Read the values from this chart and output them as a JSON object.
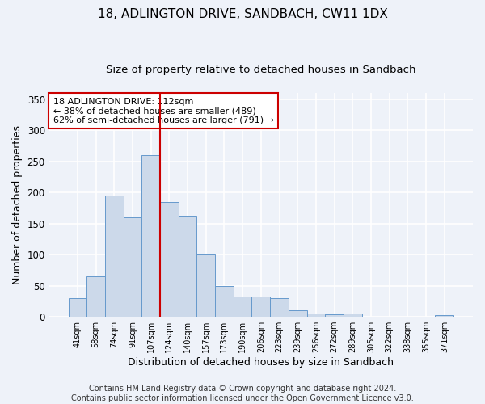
{
  "title1": "18, ADLINGTON DRIVE, SANDBACH, CW11 1DX",
  "title2": "Size of property relative to detached houses in Sandbach",
  "xlabel": "Distribution of detached houses by size in Sandbach",
  "ylabel": "Number of detached properties",
  "bar_labels": [
    "41sqm",
    "58sqm",
    "74sqm",
    "91sqm",
    "107sqm",
    "124sqm",
    "140sqm",
    "157sqm",
    "173sqm",
    "190sqm",
    "206sqm",
    "223sqm",
    "239sqm",
    "256sqm",
    "272sqm",
    "289sqm",
    "305sqm",
    "322sqm",
    "338sqm",
    "355sqm",
    "371sqm"
  ],
  "bar_values": [
    30,
    65,
    195,
    160,
    260,
    185,
    163,
    102,
    50,
    33,
    33,
    30,
    10,
    5,
    4,
    5,
    0,
    0,
    0,
    0,
    3
  ],
  "bar_color": "#ccd9ea",
  "bar_edge_color": "#6699cc",
  "vline_x": 4.5,
  "vline_color": "#cc0000",
  "annotation_text": "18 ADLINGTON DRIVE: 112sqm\n← 38% of detached houses are smaller (489)\n62% of semi-detached houses are larger (791) →",
  "annotation_box_color": "white",
  "annotation_box_edge": "#cc0000",
  "ylim": [
    0,
    360
  ],
  "yticks": [
    0,
    50,
    100,
    150,
    200,
    250,
    300,
    350
  ],
  "footnote": "Contains HM Land Registry data © Crown copyright and database right 2024.\nContains public sector information licensed under the Open Government Licence v3.0.",
  "bg_color": "#eef2f9",
  "plot_bg_color": "#eef2f9",
  "grid_color": "white",
  "title1_fontsize": 11,
  "title2_fontsize": 9.5,
  "xlabel_fontsize": 9,
  "ylabel_fontsize": 9,
  "annotation_fontsize": 8,
  "footnote_fontsize": 7
}
